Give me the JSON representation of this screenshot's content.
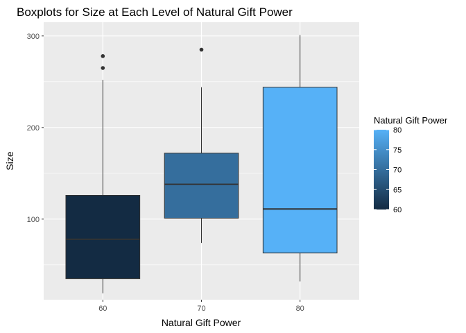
{
  "chart_data": {
    "type": "boxplot",
    "title": "Boxplots for Size at Each Level of Natural Gift Power",
    "xlabel": "Natural Gift Power",
    "ylabel": "Size",
    "categories": [
      "60",
      "70",
      "80"
    ],
    "yticks": [
      100,
      200,
      300
    ],
    "ylim": [
      12,
      315
    ],
    "grid": true,
    "boxes": [
      {
        "category": "60",
        "fill_value": 60,
        "whisker_low": 19,
        "q1": 35,
        "median": 78,
        "q3": 126,
        "whisker_high": 252,
        "outliers": [
          265,
          278
        ]
      },
      {
        "category": "70",
        "fill_value": 70,
        "whisker_low": 74,
        "q1": 101,
        "median": 138,
        "q3": 172,
        "whisker_high": 244,
        "outliers": [
          285
        ]
      },
      {
        "category": "80",
        "fill_value": 80,
        "whisker_low": 32,
        "q1": 63,
        "median": 111,
        "q3": 244,
        "whisker_high": 301,
        "outliers": []
      }
    ],
    "legend": {
      "title": "Natural Gift Power",
      "position": "right",
      "ticks": [
        80,
        75,
        70,
        65,
        60
      ],
      "range": [
        60,
        80
      ],
      "color_low": "#132b43",
      "color_high": "#56b1f7"
    }
  }
}
